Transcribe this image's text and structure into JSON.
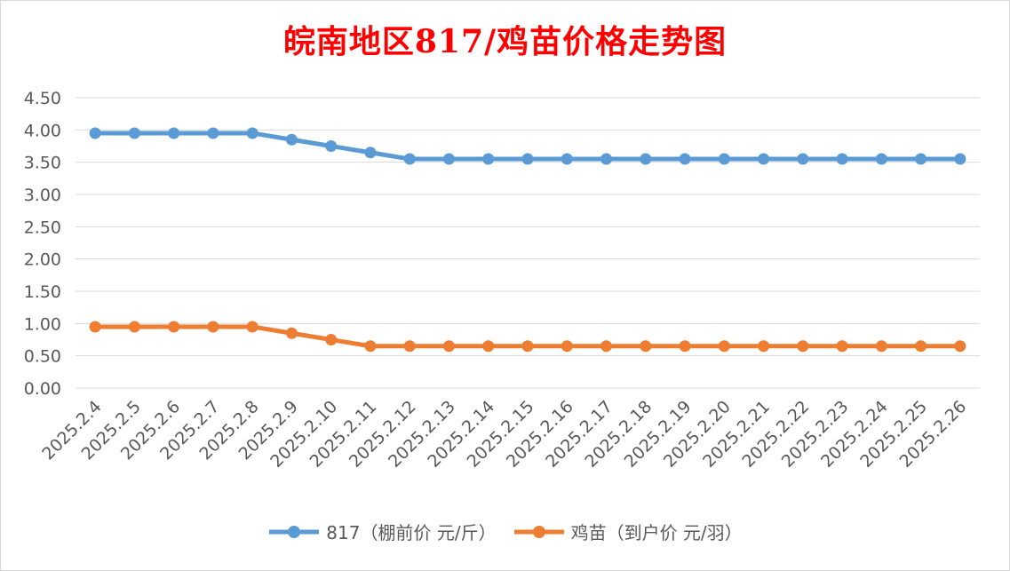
{
  "chart_data": {
    "type": "line",
    "title": "皖南地区817/鸡苗价格走势图",
    "categories": [
      "2025.2.4",
      "2025.2.5",
      "2025.2.6",
      "2025.2.7",
      "2025.2.8",
      "2025.2.9",
      "2025.2.10",
      "2025.2.11",
      "2025.2.12",
      "2025.2.13",
      "2025.2.14",
      "2025.2.15",
      "2025.2.16",
      "2025.2.17",
      "2025.2.18",
      "2025.2.19",
      "2025.2.20",
      "2025.2.21",
      "2025.2.22",
      "2025.2.23",
      "2025.2.24",
      "2025.2.25",
      "2025.2.26"
    ],
    "series": [
      {
        "name": "817（棚前价 元/斤）",
        "color": "#5b9bd5",
        "values": [
          3.95,
          3.95,
          3.95,
          3.95,
          3.95,
          3.85,
          3.75,
          3.65,
          3.55,
          3.55,
          3.55,
          3.55,
          3.55,
          3.55,
          3.55,
          3.55,
          3.55,
          3.55,
          3.55,
          3.55,
          3.55,
          3.55,
          3.55
        ]
      },
      {
        "name": "鸡苗（到户价 元/羽）",
        "color": "#ed7d31",
        "values": [
          0.95,
          0.95,
          0.95,
          0.95,
          0.95,
          0.85,
          0.75,
          0.65,
          0.65,
          0.65,
          0.65,
          0.65,
          0.65,
          0.65,
          0.65,
          0.65,
          0.65,
          0.65,
          0.65,
          0.65,
          0.65,
          0.65,
          0.65
        ]
      }
    ],
    "ylim": [
      0,
      4.5
    ],
    "yticks": [
      "0.00",
      "0.50",
      "1.00",
      "1.50",
      "2.00",
      "2.50",
      "3.00",
      "3.50",
      "4.00",
      "4.50"
    ],
    "grid": true,
    "legend_position": "bottom"
  }
}
